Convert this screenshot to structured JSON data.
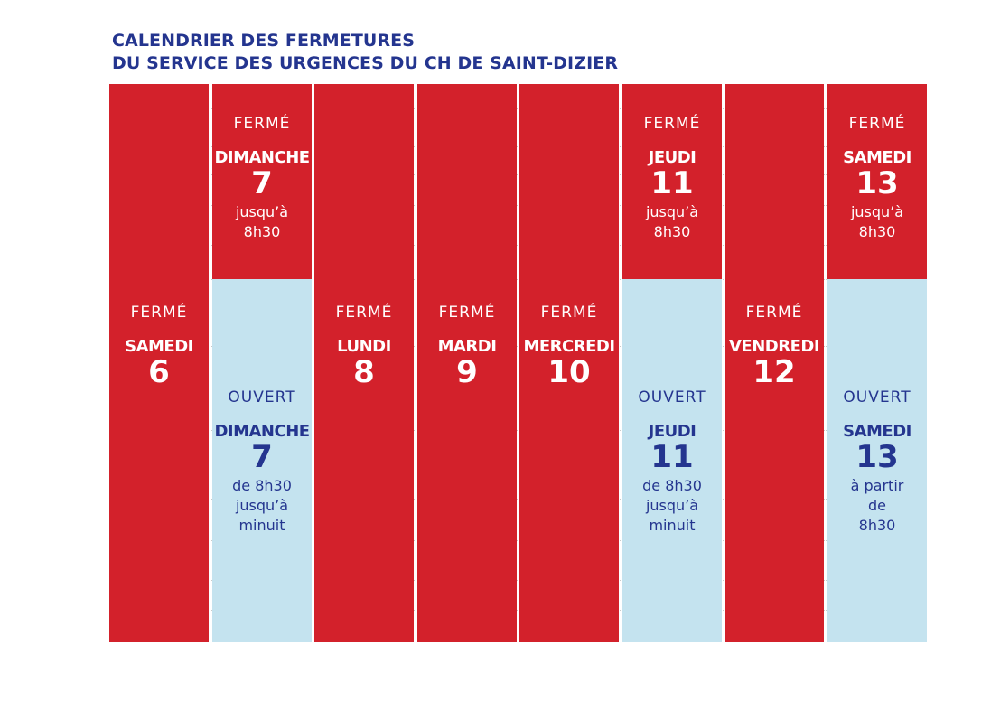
{
  "title": {
    "line1": "CALENDRIER DES FERMETURES",
    "line2": "DU SERVICE DES URGENCES DU CH DE SAINT-DIZIER"
  },
  "colors": {
    "closed": "#d3212b",
    "open": "#c4e3ef",
    "title": "#24358f"
  },
  "chart_data": {
    "type": "table",
    "columns": [
      {
        "blocks": [
          {
            "state": "closed",
            "status": "FERMÉ",
            "day": "SAMEDI",
            "num": "6",
            "note": "",
            "fraction": 1.0
          }
        ]
      },
      {
        "blocks": [
          {
            "state": "closed",
            "status": "FERMÉ",
            "day": "DIMANCHE",
            "num": "7",
            "note": "jusqu’à\n8h30",
            "fraction": 0.35
          },
          {
            "state": "open",
            "status": "OUVERT",
            "day": "DIMANCHE",
            "num": "7",
            "note": "de 8h30\njusqu’à\nminuit",
            "fraction": 0.65
          }
        ]
      },
      {
        "blocks": [
          {
            "state": "closed",
            "status": "FERMÉ",
            "day": "LUNDI",
            "num": "8",
            "note": "",
            "fraction": 1.0
          }
        ]
      },
      {
        "blocks": [
          {
            "state": "closed",
            "status": "FERMÉ",
            "day": "MARDI",
            "num": "9",
            "note": "",
            "fraction": 1.0
          }
        ]
      },
      {
        "blocks": [
          {
            "state": "closed",
            "status": "FERMÉ",
            "day": "MERCREDI",
            "num": "10",
            "note": "",
            "fraction": 1.0
          }
        ]
      },
      {
        "blocks": [
          {
            "state": "closed",
            "status": "FERMÉ",
            "day": "JEUDI",
            "num": "11",
            "note": "jusqu’à\n8h30",
            "fraction": 0.35
          },
          {
            "state": "open",
            "status": "OUVERT",
            "day": "JEUDI",
            "num": "11",
            "note": "de 8h30\njusqu’à\nminuit",
            "fraction": 0.65
          }
        ]
      },
      {
        "blocks": [
          {
            "state": "closed",
            "status": "FERMÉ",
            "day": "VENDREDI",
            "num": "12",
            "note": "",
            "fraction": 1.0
          }
        ]
      },
      {
        "blocks": [
          {
            "state": "closed",
            "status": "FERMÉ",
            "day": "SAMEDI",
            "num": "13",
            "note": "jusqu’à\n8h30",
            "fraction": 0.35
          },
          {
            "state": "open",
            "status": "OUVERT",
            "day": "SAMEDI",
            "num": "13",
            "note": "à partir\nde\n8h30",
            "fraction": 0.65
          }
        ]
      }
    ]
  }
}
